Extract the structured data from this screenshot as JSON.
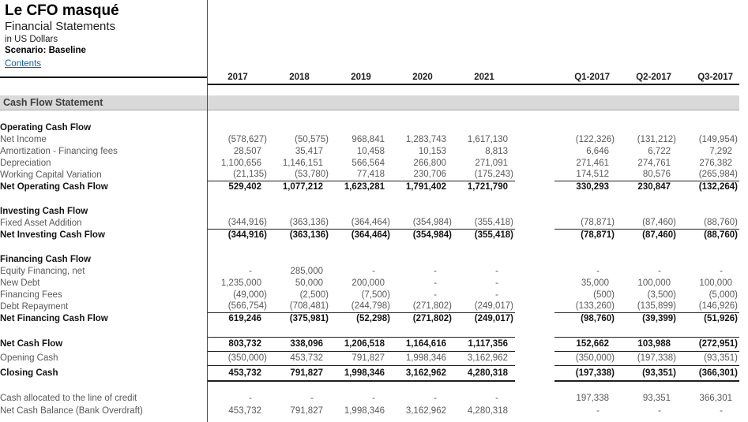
{
  "header": {
    "company": "Le CFO masqué",
    "document_title": "Financial Statements",
    "units": "in US Dollars",
    "scenario": "Scenario: Baseline",
    "contents_link": "Contents"
  },
  "table": {
    "year_columns": [
      "2017",
      "2018",
      "2019",
      "2020",
      "2021"
    ],
    "quarter_columns": [
      "Q1-2017",
      "Q2-2017",
      "Q3-2017"
    ],
    "section_banner": "Cash Flow Statement",
    "rows": [
      {
        "type": "section",
        "label": "Operating Cash Flow",
        "y": [
          "",
          "",
          "",
          "",
          ""
        ],
        "q": [
          "",
          "",
          ""
        ]
      },
      {
        "type": "item",
        "label": "Net Income",
        "y": [
          "(578,627)",
          "(50,575)",
          "968,841",
          "1,283,743",
          "1,617,130"
        ],
        "q": [
          "(122,326)",
          "(131,212)",
          "(149,954)"
        ]
      },
      {
        "type": "item",
        "label": "Amortization - Financing fees",
        "y": [
          "28,507",
          "35,417",
          "10,458",
          "10,153",
          "8,813"
        ],
        "q": [
          "6,646",
          "6,722",
          "7,292"
        ]
      },
      {
        "type": "item",
        "label": "Depreciation",
        "y": [
          "1,100,656",
          "1,146,151",
          "566,564",
          "266,800",
          "271,091"
        ],
        "q": [
          "271,461",
          "274,761",
          "276,382"
        ]
      },
      {
        "type": "item",
        "label": "Working Capital Variation",
        "rule": "under",
        "y": [
          "(21,135)",
          "(53,780)",
          "77,418",
          "230,706",
          "(175,243)"
        ],
        "q": [
          "174,512",
          "80,576",
          "(265,984)"
        ]
      },
      {
        "type": "total",
        "label": "Net Operating Cash Flow",
        "h": 16,
        "y": [
          "529,402",
          "1,077,212",
          "1,623,281",
          "1,791,402",
          "1,721,790"
        ],
        "q": [
          "330,293",
          "230,847",
          "(132,264)"
        ]
      },
      {
        "type": "blank"
      },
      {
        "type": "section",
        "label": "Investing Cash Flow",
        "y": [
          "",
          "",
          "",
          "",
          ""
        ],
        "q": [
          "",
          "",
          ""
        ]
      },
      {
        "type": "item",
        "label": "Fixed Asset Addition",
        "rule": "under",
        "y": [
          "(344,916)",
          "(363,136)",
          "(364,464)",
          "(354,984)",
          "(355,418)"
        ],
        "q": [
          "(78,871)",
          "(87,460)",
          "(88,760)"
        ]
      },
      {
        "type": "total",
        "label": "Net Investing Cash Flow",
        "h": 16,
        "y": [
          "(344,916)",
          "(363,136)",
          "(364,464)",
          "(354,984)",
          "(355,418)"
        ],
        "q": [
          "(78,871)",
          "(87,460)",
          "(88,760)"
        ]
      },
      {
        "type": "blank"
      },
      {
        "type": "section",
        "label": "Financing Cash Flow",
        "y": [
          "",
          "",
          "",
          "",
          ""
        ],
        "q": [
          "",
          "",
          ""
        ]
      },
      {
        "type": "item",
        "label": "Equity Financing, net",
        "y": [
          "-",
          "285,000",
          "-",
          "-",
          "-"
        ],
        "q": [
          "-",
          "-",
          "-"
        ]
      },
      {
        "type": "item",
        "label": "New Debt",
        "y": [
          "1,235,000",
          "50,000",
          "200,000",
          "-",
          "-"
        ],
        "q": [
          "35,000",
          "100,000",
          "100,000"
        ]
      },
      {
        "type": "item",
        "label": "Financing Fees",
        "y": [
          "(49,000)",
          "(2,500)",
          "(7,500)",
          "-",
          "-"
        ],
        "q": [
          "(500)",
          "(3,500)",
          "(5,000)"
        ]
      },
      {
        "type": "item",
        "label": "Debt Repayment",
        "rule": "under",
        "y": [
          "(566,754)",
          "(708,481)",
          "(244,798)",
          "(271,802)",
          "(249,017)"
        ],
        "q": [
          "(133,260)",
          "(135,899)",
          "(146,926)"
        ]
      },
      {
        "type": "total",
        "label": "Net Financing Cash Flow",
        "h": 16,
        "y": [
          "619,246",
          "(375,981)",
          "(52,298)",
          "(271,802)",
          "(249,017)"
        ],
        "q": [
          "(98,760)",
          "(39,399)",
          "(51,926)"
        ]
      },
      {
        "type": "blank"
      },
      {
        "type": "total",
        "label": "Net Cash Flow",
        "rule": "over-under",
        "h": 18,
        "y": [
          "803,732",
          "338,096",
          "1,206,518",
          "1,164,616",
          "1,117,356"
        ],
        "q": [
          "152,662",
          "103,988",
          "(272,951)"
        ]
      },
      {
        "type": "item",
        "label": "Opening Cash",
        "rule": "under",
        "h": 18,
        "y": [
          "(350,000)",
          "453,732",
          "791,827",
          "1,998,346",
          "3,162,962"
        ],
        "q": [
          "(350,000)",
          "(197,338)",
          "(93,351)"
        ]
      },
      {
        "type": "total",
        "label": "Closing Cash",
        "rule": "thick-under",
        "h": 20,
        "y": [
          "453,732",
          "791,827",
          "1,998,346",
          "3,162,962",
          "4,280,318"
        ],
        "q": [
          "(197,338)",
          "(93,351)",
          "(366,301)"
        ]
      },
      {
        "type": "blank",
        "h": 14
      },
      {
        "type": "plain",
        "label": "Cash allocated to the line of credit",
        "h": 16,
        "y": [
          "-",
          "-",
          "-",
          "-",
          "-"
        ],
        "q": [
          "197,338",
          "93,351",
          "366,301"
        ]
      },
      {
        "type": "plain",
        "label": "Net Cash Balance (Bank Overdraft)",
        "h": 16,
        "y": [
          "453,732",
          "791,827",
          "1,998,346",
          "3,162,962",
          "4,280,318"
        ],
        "q": [
          "-",
          "-",
          "-"
        ]
      }
    ]
  }
}
